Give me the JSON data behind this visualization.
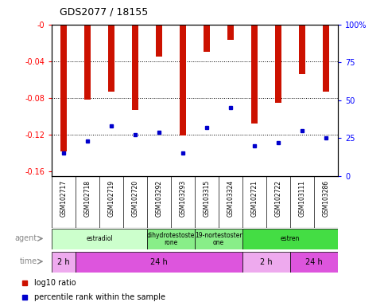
{
  "title": "GDS2077 / 18155",
  "samples": [
    "GSM102717",
    "GSM102718",
    "GSM102719",
    "GSM102720",
    "GSM103292",
    "GSM103293",
    "GSM103315",
    "GSM103324",
    "GSM102721",
    "GSM102722",
    "GSM103111",
    "GSM103286"
  ],
  "log10_ratio": [
    -0.138,
    -0.082,
    -0.073,
    -0.093,
    -0.035,
    -0.121,
    -0.03,
    -0.017,
    -0.108,
    -0.085,
    -0.054,
    -0.073
  ],
  "percentile_rank": [
    15,
    23,
    33,
    27,
    29,
    15,
    32,
    45,
    20,
    22,
    30,
    25
  ],
  "bar_color": "#cc1100",
  "marker_color": "#0000cc",
  "ylim_left": [
    -0.165,
    0.0
  ],
  "ylim_right": [
    0,
    100
  ],
  "yticks_left": [
    0.0,
    -0.04,
    -0.08,
    -0.12,
    -0.16
  ],
  "yticks_left_labels": [
    "-0",
    "-0.04",
    "-0.08",
    "-0.12",
    "-0.16"
  ],
  "yticks_right": [
    0,
    25,
    50,
    75,
    100
  ],
  "yticks_right_labels": [
    "0",
    "25",
    "50",
    "75",
    "100%"
  ],
  "agent_groups": [
    {
      "label": "estradiol",
      "start": 0,
      "end": 4,
      "color": "#ccffcc"
    },
    {
      "label": "dihydrotestoste\nrone",
      "start": 4,
      "end": 6,
      "color": "#88ee88"
    },
    {
      "label": "19-nortestoster\none",
      "start": 6,
      "end": 8,
      "color": "#88ee88"
    },
    {
      "label": "estren",
      "start": 8,
      "end": 12,
      "color": "#44dd44"
    }
  ],
  "time_groups": [
    {
      "label": "2 h",
      "start": 0,
      "end": 1,
      "color": "#eeaaee"
    },
    {
      "label": "24 h",
      "start": 1,
      "end": 8,
      "color": "#dd55dd"
    },
    {
      "label": "2 h",
      "start": 8,
      "end": 10,
      "color": "#eeaaee"
    },
    {
      "label": "24 h",
      "start": 10,
      "end": 12,
      "color": "#dd55dd"
    }
  ],
  "legend_red_label": "log10 ratio",
  "legend_blue_label": "percentile rank within the sample",
  "bg_color": "#ffffff",
  "bar_width": 0.25,
  "marker_size": 3
}
